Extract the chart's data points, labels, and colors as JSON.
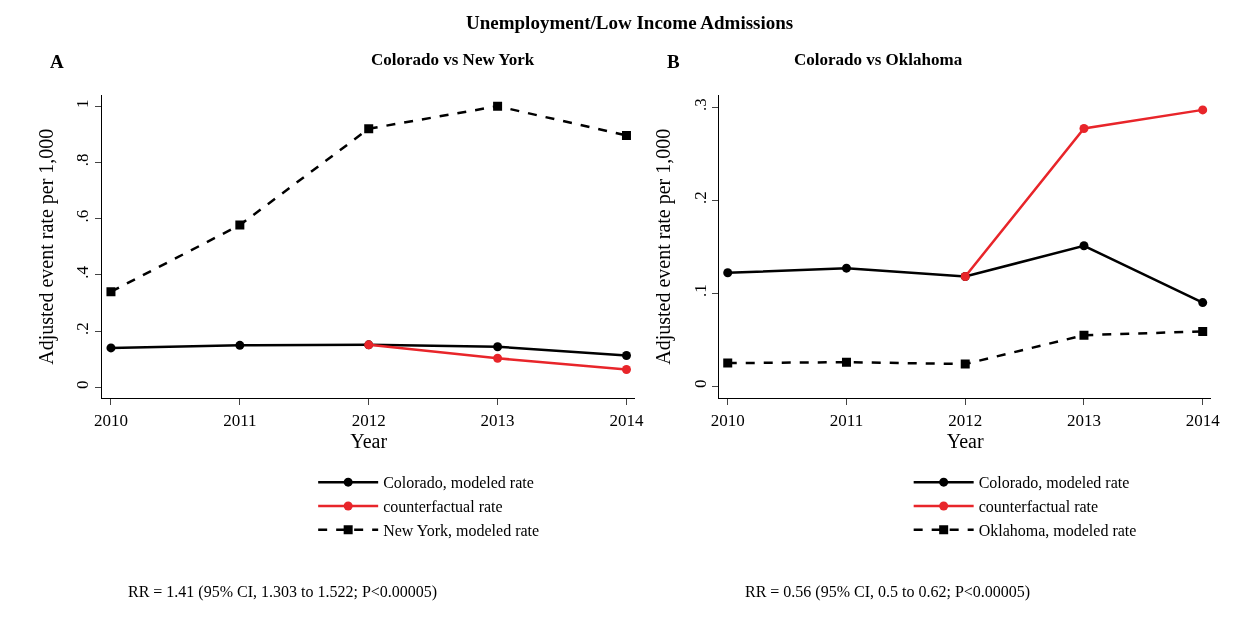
{
  "chart_data": [
    {
      "type": "line",
      "title": "Colorado vs New York",
      "xlabel": "Year",
      "ylabel": "Adjusted event rate per 1,000",
      "annotations": [
        "Unemployment/Low Income Admissions",
        "A",
        "RR = 1.41 (95% CI, 1.303 to 1.522; P<0.00005)"
      ],
      "x": [
        2010,
        2011,
        2012,
        2013,
        2014
      ],
      "series": [
        {
          "name": "Colorado, modeled rate",
          "color": "#000000",
          "marker": "circle",
          "line_style": "solid",
          "values": [
            0.14,
            0.149,
            0.151,
            0.144,
            0.113
          ]
        },
        {
          "name": "counterfactual rate",
          "color": "#e8252a",
          "marker": "circle",
          "line_style": "solid",
          "values": [
            null,
            null,
            0.151,
            0.103,
            0.063
          ]
        },
        {
          "name": "New York, modeled rate",
          "color": "#000000",
          "marker": "square",
          "line_style": "dashed",
          "values": [
            0.34,
            0.577,
            0.92,
            1.0,
            0.896
          ]
        }
      ],
      "xlim": [
        2009.93,
        2014.07
      ],
      "xticks": [
        2010,
        2011,
        2012,
        2013,
        2014
      ],
      "ylim": [
        -0.04,
        1.04
      ],
      "yticks": [
        {
          "value": 0,
          "label": "0"
        },
        {
          "value": 0.2,
          "label": ".2"
        },
        {
          "value": 0.4,
          "label": ".4"
        },
        {
          "value": 0.6,
          "label": ".6"
        },
        {
          "value": 0.8,
          "label": ".8"
        },
        {
          "value": 1,
          "label": "1"
        }
      ],
      "legend": "bottom"
    },
    {
      "type": "line",
      "title": "Colorado vs Oklahoma",
      "xlabel": "Year",
      "ylabel": "Adjusted event rate per 1,000",
      "annotations": [
        "B",
        "RR = 0.56 (95% CI, 0.5 to 0.62; P<0.00005)"
      ],
      "x": [
        2010,
        2011,
        2012,
        2013,
        2014
      ],
      "series": [
        {
          "name": "Colorado, modeled rate",
          "color": "#000000",
          "marker": "circle",
          "line_style": "solid",
          "values": [
            0.122,
            0.127,
            0.118,
            0.151,
            0.09
          ]
        },
        {
          "name": "counterfactual rate",
          "color": "#e8252a",
          "marker": "circle",
          "line_style": "solid",
          "values": [
            null,
            null,
            0.118,
            0.277,
            0.297
          ]
        },
        {
          "name": "Oklahoma, modeled rate",
          "color": "#000000",
          "marker": "square",
          "line_style": "dashed",
          "values": [
            0.025,
            0.026,
            0.024,
            0.055,
            0.059
          ]
        }
      ],
      "xlim": [
        2009.93,
        2014.07
      ],
      "xticks": [
        2010,
        2011,
        2012,
        2013,
        2014
      ],
      "ylim": [
        -0.013,
        0.313
      ],
      "yticks": [
        {
          "value": 0,
          "label": "0"
        },
        {
          "value": 0.1,
          "label": ".1"
        },
        {
          "value": 0.2,
          "label": ".2"
        },
        {
          "value": 0.3,
          "label": ".3"
        }
      ],
      "legend": "bottom"
    }
  ]
}
